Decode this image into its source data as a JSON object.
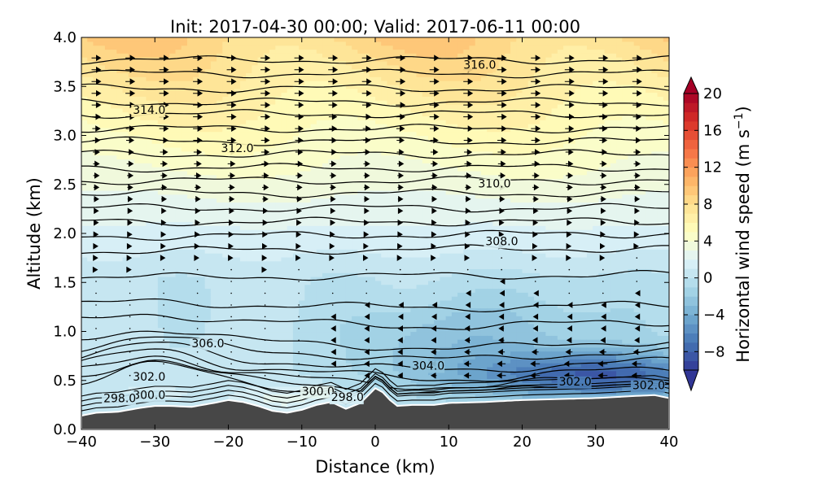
{
  "chart_data": {
    "type": "heatmap",
    "title": "Init: 2017-04-30 00:00; Valid: 2017-06-11 00:00",
    "xlabel": "Distance (km)",
    "ylabel": "Altitude (km)",
    "xlim": [
      -40,
      40
    ],
    "ylim": [
      0.0,
      4.0
    ],
    "x_ticks": [
      "−40",
      "−30",
      "−20",
      "−10",
      "0",
      "10",
      "20",
      "30",
      "40"
    ],
    "y_ticks": [
      "0.0",
      "0.5",
      "1.0",
      "1.5",
      "2.0",
      "2.5",
      "3.0",
      "3.5",
      "4.0"
    ],
    "colorbar": {
      "label": "Horizontal wind speed (m s",
      "label_sup": "−1",
      "label_close": ")",
      "range": [
        -10,
        20
      ],
      "step": 1,
      "extend": "both",
      "ticks": [
        "−8",
        "−4",
        "0",
        "4",
        "8",
        "12",
        "16",
        "20"
      ]
    },
    "contour_labels": [
      {
        "text": "316.0",
        "x": 12,
        "y": 3.68
      },
      {
        "text": "314.0",
        "x": -33,
        "y": 3.22
      },
      {
        "text": "312.0",
        "x": -21,
        "y": 2.83
      },
      {
        "text": "310.0",
        "x": 14,
        "y": 2.47
      },
      {
        "text": "308.0",
        "x": 15,
        "y": 1.88
      },
      {
        "text": "306.0",
        "x": -25,
        "y": 0.84
      },
      {
        "text": "304.0",
        "x": 5,
        "y": 0.61
      },
      {
        "text": "302.0",
        "x": -33,
        "y": 0.5
      },
      {
        "text": "302.0",
        "x": 25,
        "y": 0.45
      },
      {
        "text": "302.0",
        "x": 35,
        "y": 0.41
      },
      {
        "text": "300.0",
        "x": -33,
        "y": 0.31
      },
      {
        "text": "300.0",
        "x": -10,
        "y": 0.35
      },
      {
        "text": "298.0",
        "x": -37,
        "y": 0.28
      },
      {
        "text": "298.0",
        "x": -6,
        "y": 0.29
      }
    ],
    "terrain_height_km": {
      "x": [
        -40,
        -38,
        -35,
        -32,
        -30,
        -28,
        -25,
        -22,
        -20,
        -18,
        -16,
        -14,
        -12,
        -10,
        -8,
        -6,
        -4,
        -2,
        0,
        1,
        2,
        3,
        5,
        8,
        10,
        15,
        20,
        25,
        30,
        35,
        38,
        40
      ],
      "y": [
        0.14,
        0.17,
        0.18,
        0.22,
        0.24,
        0.24,
        0.23,
        0.27,
        0.3,
        0.28,
        0.24,
        0.19,
        0.17,
        0.2,
        0.25,
        0.28,
        0.21,
        0.27,
        0.42,
        0.38,
        0.3,
        0.24,
        0.25,
        0.25,
        0.27,
        0.28,
        0.3,
        0.31,
        0.32,
        0.34,
        0.35,
        0.32
      ]
    }
  }
}
